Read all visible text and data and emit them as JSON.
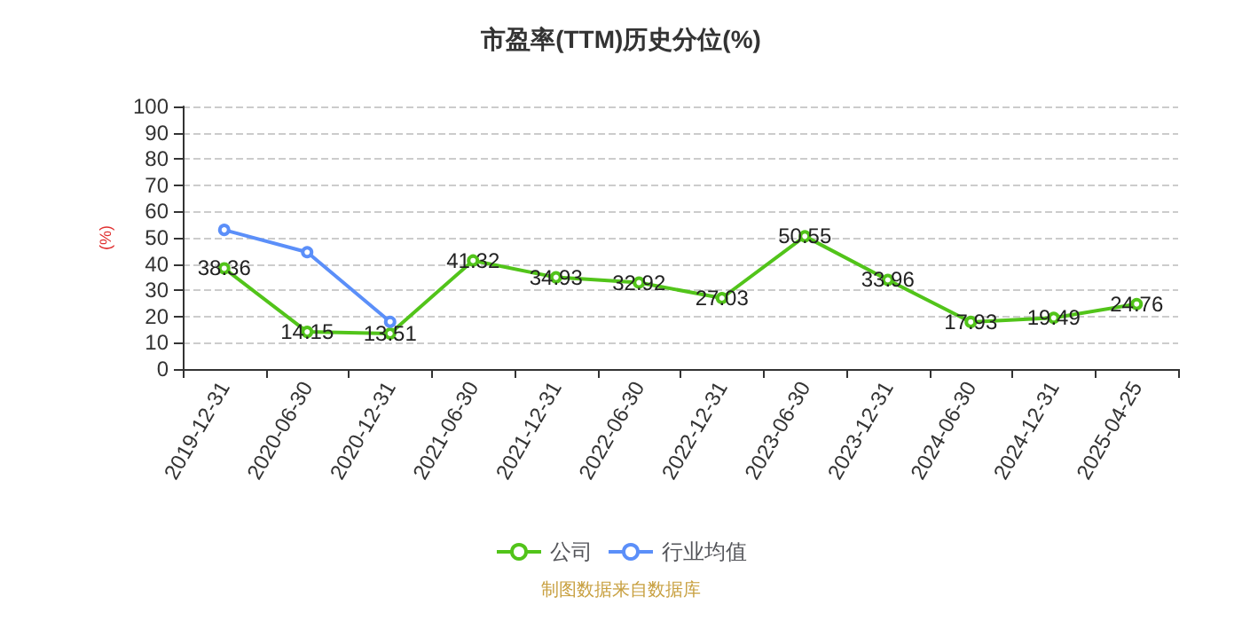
{
  "chart_data": {
    "type": "line",
    "title": "市盈率(TTM)历史分位(%)",
    "ylabel": "(%)",
    "categories": [
      "2019-12-31",
      "2020-06-30",
      "2020-12-31",
      "2021-06-30",
      "2021-12-31",
      "2022-06-30",
      "2022-12-31",
      "2023-06-30",
      "2023-12-31",
      "2024-06-30",
      "2024-12-31",
      "2025-04-25"
    ],
    "series": [
      {
        "name": "公司",
        "color": "#52c41a",
        "values": [
          38.36,
          14.15,
          13.51,
          41.32,
          34.93,
          32.92,
          27.03,
          50.55,
          33.96,
          17.93,
          19.49,
          24.76
        ],
        "value_labels": [
          "38.36",
          "14.15",
          "13.51",
          "41.32",
          "34.93",
          "32.92",
          "27.03",
          "50.55",
          "33.96",
          "17.93",
          "19.49",
          "24.76"
        ]
      },
      {
        "name": "行业均值",
        "color": "#5b8ff9",
        "values": [
          53,
          44.5,
          18,
          null,
          null,
          null,
          null,
          null,
          null,
          null,
          null,
          null
        ]
      }
    ],
    "ylim": [
      0,
      100
    ],
    "yticks": [
      0,
      10,
      20,
      30,
      40,
      50,
      60,
      70,
      80,
      90,
      100
    ],
    "grid": "y",
    "legend": "bottom",
    "marker": "circle",
    "annotations": [
      "制图数据来自数据库"
    ]
  }
}
